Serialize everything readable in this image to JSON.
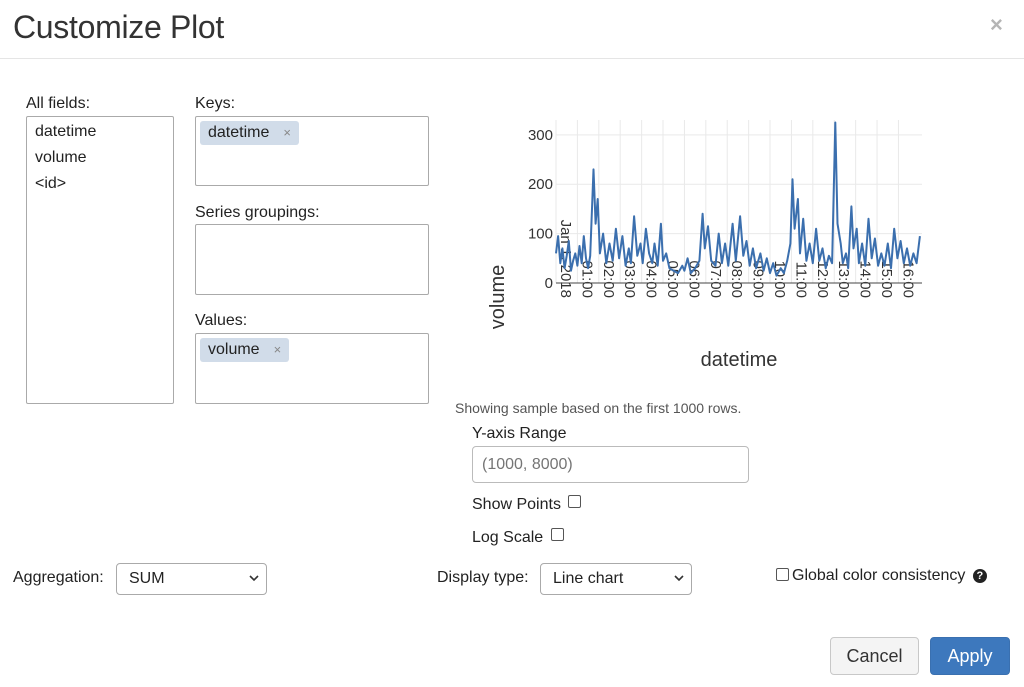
{
  "dialog": {
    "title": "Customize Plot",
    "close_glyph": "×"
  },
  "fields": {
    "all_label": "All fields:",
    "all_items": [
      "datetime",
      "volume",
      "<id>"
    ],
    "keys_label": "Keys:",
    "keys_chips": [
      "datetime"
    ],
    "series_label": "Series groupings:",
    "values_label": "Values:",
    "values_chips": [
      "volume"
    ],
    "chip_remove_glyph": "×"
  },
  "sample_note": "Showing sample based on the first 1000 rows.",
  "yrange": {
    "label": "Y-axis Range",
    "placeholder": "(1000, 8000)"
  },
  "options": {
    "show_points_label": "Show Points",
    "log_scale_label": "Log Scale"
  },
  "aggregation": {
    "label": "Aggregation:",
    "selected": "SUM"
  },
  "display_type": {
    "label": "Display type:",
    "selected": "Line chart"
  },
  "global_color": {
    "label": "Global color consistency",
    "help_glyph": "?"
  },
  "buttons": {
    "cancel": "Cancel",
    "apply": "Apply"
  },
  "icons": {
    "close": "close-icon",
    "chip_remove": "remove-chip-icon",
    "dropdown": "chevron-down-icon",
    "help": "question-circle-icon"
  },
  "colors": {
    "accent": "#3d78bd",
    "chip": "#d1dce9",
    "line": "#3b6fae"
  },
  "chart_data": {
    "type": "line",
    "xlabel": "datetime",
    "ylabel": "volume",
    "x_ticks": [
      "Jan 1, 2018",
      "01:00",
      "02:00",
      "03:00",
      "04:00",
      "05:00",
      "06:00",
      "07:00",
      "08:00",
      "09:00",
      "10:00",
      "11:00",
      "12:00",
      "13:00",
      "14:00",
      "15:00",
      "16:00"
    ],
    "x_range_hours": [
      0,
      17.1
    ],
    "y_ticks": [
      0,
      100,
      200,
      300
    ],
    "ylim": [
      0,
      330
    ],
    "grid": true,
    "series": [
      {
        "values": [
          [
            0.0,
            60
          ],
          [
            0.1,
            95
          ],
          [
            0.2,
            40
          ],
          [
            0.3,
            70
          ],
          [
            0.4,
            30
          ],
          [
            0.5,
            55
          ],
          [
            0.6,
            85
          ],
          [
            0.7,
            25
          ],
          [
            0.8,
            45
          ],
          [
            0.9,
            60
          ],
          [
            1.0,
            35
          ],
          [
            1.1,
            75
          ],
          [
            1.2,
            40
          ],
          [
            1.3,
            95
          ],
          [
            1.4,
            50
          ],
          [
            1.5,
            30
          ],
          [
            1.6,
            55
          ],
          [
            1.75,
            230
          ],
          [
            1.85,
            120
          ],
          [
            1.95,
            170
          ],
          [
            2.05,
            60
          ],
          [
            2.2,
            100
          ],
          [
            2.35,
            40
          ],
          [
            2.5,
            80
          ],
          [
            2.65,
            45
          ],
          [
            2.8,
            110
          ],
          [
            2.95,
            50
          ],
          [
            3.1,
            95
          ],
          [
            3.25,
            35
          ],
          [
            3.4,
            70
          ],
          [
            3.5,
            40
          ],
          [
            3.65,
            135
          ],
          [
            3.8,
            55
          ],
          [
            3.95,
            80
          ],
          [
            4.05,
            40
          ],
          [
            4.2,
            110
          ],
          [
            4.35,
            60
          ],
          [
            4.5,
            40
          ],
          [
            4.6,
            80
          ],
          [
            4.75,
            35
          ],
          [
            4.9,
            120
          ],
          [
            5.0,
            45
          ],
          [
            5.15,
            60
          ],
          [
            5.3,
            30
          ],
          [
            5.5,
            25
          ],
          [
            5.7,
            20
          ],
          [
            5.9,
            35
          ],
          [
            6.0,
            25
          ],
          [
            6.15,
            50
          ],
          [
            6.3,
            20
          ],
          [
            6.5,
            30
          ],
          [
            6.7,
            45
          ],
          [
            6.85,
            140
          ],
          [
            6.95,
            70
          ],
          [
            7.1,
            115
          ],
          [
            7.25,
            45
          ],
          [
            7.45,
            35
          ],
          [
            7.6,
            100
          ],
          [
            7.75,
            40
          ],
          [
            7.9,
            80
          ],
          [
            8.05,
            35
          ],
          [
            8.25,
            120
          ],
          [
            8.4,
            45
          ],
          [
            8.6,
            135
          ],
          [
            8.75,
            55
          ],
          [
            8.9,
            85
          ],
          [
            9.05,
            35
          ],
          [
            9.2,
            70
          ],
          [
            9.35,
            30
          ],
          [
            9.55,
            60
          ],
          [
            9.7,
            25
          ],
          [
            9.85,
            50
          ],
          [
            10.0,
            20
          ],
          [
            10.15,
            40
          ],
          [
            10.3,
            15
          ],
          [
            10.5,
            30
          ],
          [
            10.65,
            20
          ],
          [
            10.8,
            45
          ],
          [
            10.95,
            80
          ],
          [
            11.05,
            210
          ],
          [
            11.15,
            110
          ],
          [
            11.3,
            170
          ],
          [
            11.4,
            60
          ],
          [
            11.55,
            130
          ],
          [
            11.7,
            45
          ],
          [
            11.85,
            80
          ],
          [
            12.0,
            40
          ],
          [
            12.15,
            110
          ],
          [
            12.3,
            45
          ],
          [
            12.45,
            70
          ],
          [
            12.6,
            30
          ],
          [
            12.75,
            55
          ],
          [
            12.9,
            40
          ],
          [
            13.05,
            325
          ],
          [
            13.15,
            120
          ],
          [
            13.3,
            80
          ],
          [
            13.4,
            40
          ],
          [
            13.55,
            60
          ],
          [
            13.65,
            30
          ],
          [
            13.8,
            155
          ],
          [
            13.9,
            70
          ],
          [
            14.05,
            110
          ],
          [
            14.15,
            40
          ],
          [
            14.3,
            80
          ],
          [
            14.45,
            35
          ],
          [
            14.6,
            130
          ],
          [
            14.75,
            50
          ],
          [
            14.9,
            90
          ],
          [
            15.05,
            35
          ],
          [
            15.2,
            60
          ],
          [
            15.35,
            35
          ],
          [
            15.5,
            80
          ],
          [
            15.65,
            30
          ],
          [
            15.8,
            110
          ],
          [
            15.95,
            50
          ],
          [
            16.1,
            85
          ],
          [
            16.25,
            40
          ],
          [
            16.4,
            70
          ],
          [
            16.55,
            35
          ],
          [
            16.7,
            60
          ],
          [
            16.85,
            40
          ],
          [
            17.0,
            95
          ]
        ]
      }
    ]
  }
}
